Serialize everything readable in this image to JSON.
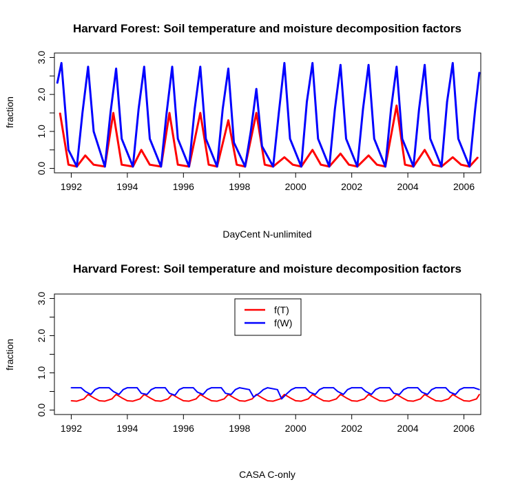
{
  "chart_data": [
    {
      "type": "line",
      "title": "Harvard Forest: Soil temperature and moisture decomposition factors",
      "xlabel": "DayCent N-unlimited",
      "ylabel": "fraction",
      "xlim": [
        1991.4,
        2006.6
      ],
      "ylim": [
        0.0,
        3.0
      ],
      "x_ticks": [
        1992,
        1994,
        1996,
        1998,
        2000,
        2002,
        2004,
        2006
      ],
      "x_tick_labels": [
        "1992",
        "1994",
        "1996",
        "1998",
        "2000",
        "2002",
        "2004",
        "2006"
      ],
      "y_ticks": [
        0.0,
        1.0,
        2.0,
        3.0
      ],
      "y_tick_labels": [
        "0.0",
        "1.0",
        "2.0",
        "3.0"
      ],
      "series": [
        {
          "color": "#ff0000",
          "x": [
            1991.6,
            1991.9,
            1992.2,
            1992.5,
            1992.8,
            1993.2,
            1993.5,
            1993.8,
            1994.2,
            1994.5,
            1994.8,
            1995.2,
            1995.5,
            1995.8,
            1996.2,
            1996.6,
            1996.9,
            1997.2,
            1997.6,
            1997.9,
            1998.2,
            1998.6,
            1998.9,
            1999.2,
            1999.6,
            1999.9,
            2000.2,
            2000.6,
            2000.9,
            2001.2,
            2001.6,
            2001.9,
            2002.2,
            2002.6,
            2002.9,
            2003.2,
            2003.6,
            2003.9,
            2004.2,
            2004.6,
            2004.9,
            2005.2,
            2005.6,
            2005.9,
            2006.2,
            2006.5
          ],
          "values": [
            1.5,
            0.1,
            0.05,
            0.35,
            0.1,
            0.05,
            1.5,
            0.1,
            0.05,
            0.5,
            0.1,
            0.05,
            1.5,
            0.1,
            0.05,
            1.5,
            0.1,
            0.05,
            1.3,
            0.1,
            0.05,
            1.5,
            0.1,
            0.05,
            0.3,
            0.1,
            0.05,
            0.5,
            0.1,
            0.05,
            0.4,
            0.1,
            0.05,
            0.35,
            0.1,
            0.05,
            1.7,
            0.1,
            0.05,
            0.5,
            0.1,
            0.05,
            0.3,
            0.1,
            0.05,
            0.3
          ]
        },
        {
          "color": "#0000ff",
          "x": [
            1991.5,
            1991.65,
            1991.9,
            1992.2,
            1992.4,
            1992.6,
            1992.8,
            1993.2,
            1993.4,
            1993.6,
            1993.8,
            1994.2,
            1994.4,
            1994.6,
            1994.8,
            1995.2,
            1995.4,
            1995.6,
            1995.8,
            1996.2,
            1996.4,
            1996.6,
            1996.8,
            1997.2,
            1997.4,
            1997.6,
            1997.8,
            1998.2,
            1998.4,
            1998.6,
            1998.8,
            1999.2,
            1999.4,
            1999.6,
            1999.8,
            2000.2,
            2000.4,
            2000.6,
            2000.8,
            2001.2,
            2001.4,
            2001.6,
            2001.8,
            2002.2,
            2002.4,
            2002.6,
            2002.8,
            2003.2,
            2003.4,
            2003.6,
            2003.8,
            2004.2,
            2004.4,
            2004.6,
            2004.8,
            2005.2,
            2005.4,
            2005.6,
            2005.8,
            2006.2,
            2006.4,
            2006.55
          ],
          "values": [
            2.3,
            2.85,
            0.5,
            0.05,
            1.5,
            2.75,
            1.0,
            0.05,
            1.5,
            2.7,
            0.8,
            0.05,
            1.6,
            2.75,
            0.8,
            0.05,
            1.5,
            2.75,
            0.8,
            0.05,
            1.6,
            2.75,
            0.8,
            0.05,
            1.6,
            2.7,
            0.7,
            0.05,
            1.0,
            2.15,
            0.6,
            0.05,
            1.5,
            2.85,
            0.8,
            0.05,
            1.8,
            2.85,
            0.8,
            0.05,
            1.6,
            2.8,
            0.8,
            0.05,
            1.6,
            2.8,
            0.8,
            0.05,
            1.6,
            2.75,
            0.8,
            0.05,
            1.6,
            2.8,
            0.8,
            0.05,
            1.8,
            2.85,
            0.8,
            0.05,
            1.6,
            2.6
          ]
        }
      ]
    },
    {
      "type": "line",
      "title": "Harvard Forest: Soil temperature and moisture decomposition factors",
      "xlabel": "CASA C-only",
      "ylabel": "fraction",
      "xlim": [
        1991.4,
        2006.6
      ],
      "ylim": [
        0.0,
        3.0
      ],
      "x_ticks": [
        1992,
        1994,
        1996,
        1998,
        2000,
        2002,
        2004,
        2006
      ],
      "x_tick_labels": [
        "1992",
        "1994",
        "1996",
        "1998",
        "2000",
        "2002",
        "2004",
        "2006"
      ],
      "y_ticks": [
        0.0,
        1.0,
        2.0,
        3.0
      ],
      "y_tick_labels": [
        "0.0",
        "1.0",
        "2.0",
        "3.0"
      ],
      "legend": {
        "position": "top-center",
        "entries": [
          {
            "name": "f(T)",
            "color": "#ff0000"
          },
          {
            "name": "f(W)",
            "color": "#0000ff"
          }
        ]
      },
      "series": [
        {
          "name": "f(T)",
          "color": "#ff0000",
          "x": [
            1992.0,
            1992.2,
            1992.45,
            1992.6,
            1992.8,
            1993.0,
            1993.2,
            1993.45,
            1993.6,
            1993.8,
            1994.0,
            1994.2,
            1994.45,
            1994.6,
            1994.8,
            1995.0,
            1995.2,
            1995.45,
            1995.6,
            1995.8,
            1996.0,
            1996.2,
            1996.45,
            1996.6,
            1996.8,
            1997.0,
            1997.2,
            1997.45,
            1997.6,
            1997.8,
            1998.0,
            1998.2,
            1998.45,
            1998.6,
            1998.8,
            1999.0,
            1999.2,
            1999.45,
            1999.6,
            1999.8,
            2000.0,
            2000.2,
            2000.45,
            2000.6,
            2000.8,
            2001.0,
            2001.2,
            2001.45,
            2001.6,
            2001.8,
            2002.0,
            2002.2,
            2002.45,
            2002.6,
            2002.8,
            2003.0,
            2003.2,
            2003.45,
            2003.6,
            2003.8,
            2004.0,
            2004.2,
            2004.45,
            2004.6,
            2004.8,
            2005.0,
            2005.2,
            2005.45,
            2005.6,
            2005.8,
            2006.0,
            2006.2,
            2006.45,
            2006.55
          ],
          "values": [
            0.25,
            0.24,
            0.3,
            0.42,
            0.33,
            0.25,
            0.24,
            0.3,
            0.42,
            0.33,
            0.25,
            0.24,
            0.3,
            0.42,
            0.33,
            0.25,
            0.24,
            0.3,
            0.42,
            0.33,
            0.25,
            0.24,
            0.3,
            0.42,
            0.33,
            0.25,
            0.24,
            0.3,
            0.42,
            0.33,
            0.25,
            0.24,
            0.3,
            0.42,
            0.33,
            0.25,
            0.24,
            0.3,
            0.42,
            0.33,
            0.25,
            0.24,
            0.3,
            0.42,
            0.33,
            0.25,
            0.24,
            0.3,
            0.42,
            0.33,
            0.25,
            0.24,
            0.3,
            0.42,
            0.33,
            0.25,
            0.24,
            0.3,
            0.42,
            0.33,
            0.25,
            0.24,
            0.3,
            0.42,
            0.33,
            0.25,
            0.24,
            0.3,
            0.42,
            0.33,
            0.25,
            0.24,
            0.3,
            0.42
          ]
        },
        {
          "name": "f(W)",
          "color": "#0000ff",
          "x": [
            1992.0,
            1992.35,
            1992.5,
            1992.7,
            1992.85,
            1993.0,
            1993.35,
            1993.5,
            1993.7,
            1993.85,
            1994.0,
            1994.35,
            1994.5,
            1994.7,
            1994.85,
            1995.0,
            1995.35,
            1995.5,
            1995.7,
            1995.85,
            1996.0,
            1996.35,
            1996.5,
            1996.7,
            1996.85,
            1997.0,
            1997.35,
            1997.5,
            1997.7,
            1997.85,
            1998.0,
            1998.35,
            1998.5,
            1998.7,
            1998.85,
            1999.0,
            1999.35,
            1999.5,
            1999.7,
            1999.85,
            2000.0,
            2000.35,
            2000.5,
            2000.7,
            2000.85,
            2001.0,
            2001.35,
            2001.5,
            2001.7,
            2001.85,
            2002.0,
            2002.35,
            2002.5,
            2002.7,
            2002.85,
            2003.0,
            2003.35,
            2003.5,
            2003.7,
            2003.85,
            2004.0,
            2004.35,
            2004.5,
            2004.7,
            2004.85,
            2005.0,
            2005.35,
            2005.5,
            2005.7,
            2005.85,
            2006.0,
            2006.35,
            2006.55
          ],
          "values": [
            0.6,
            0.6,
            0.5,
            0.42,
            0.55,
            0.6,
            0.6,
            0.5,
            0.42,
            0.55,
            0.6,
            0.6,
            0.45,
            0.42,
            0.55,
            0.6,
            0.6,
            0.45,
            0.4,
            0.55,
            0.6,
            0.6,
            0.48,
            0.42,
            0.55,
            0.6,
            0.6,
            0.45,
            0.42,
            0.55,
            0.6,
            0.55,
            0.35,
            0.45,
            0.55,
            0.6,
            0.55,
            0.3,
            0.45,
            0.55,
            0.6,
            0.6,
            0.48,
            0.42,
            0.55,
            0.6,
            0.6,
            0.5,
            0.42,
            0.55,
            0.6,
            0.6,
            0.5,
            0.42,
            0.55,
            0.6,
            0.6,
            0.45,
            0.42,
            0.55,
            0.6,
            0.6,
            0.48,
            0.42,
            0.55,
            0.6,
            0.6,
            0.48,
            0.42,
            0.55,
            0.6,
            0.6,
            0.55
          ]
        }
      ]
    }
  ]
}
